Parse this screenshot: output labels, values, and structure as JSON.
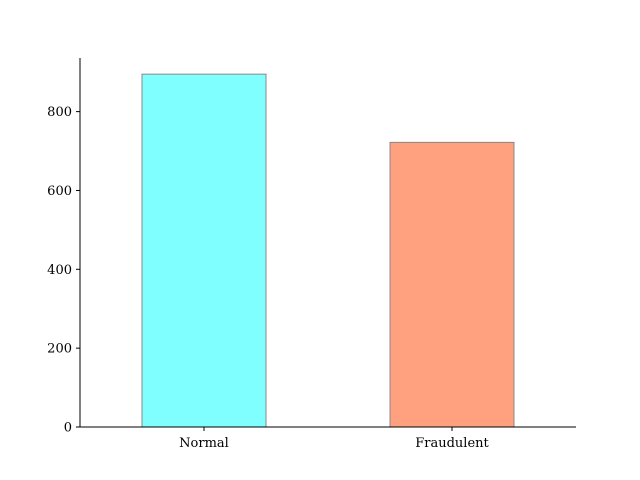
{
  "chart_data": {
    "type": "bar",
    "title": "",
    "xlabel": "",
    "ylabel": "",
    "categories": [
      "Normal",
      "Fraudulent"
    ],
    "values": [
      895,
      722
    ],
    "colors": [
      "#7fffff",
      "#ffa07f"
    ],
    "ylim": [
      0,
      936
    ],
    "yticks": [
      0,
      200,
      400,
      600,
      800
    ],
    "ytick_labels": [
      "0",
      "200",
      "400",
      "600",
      "800"
    ],
    "grid": false,
    "legend": "none"
  }
}
